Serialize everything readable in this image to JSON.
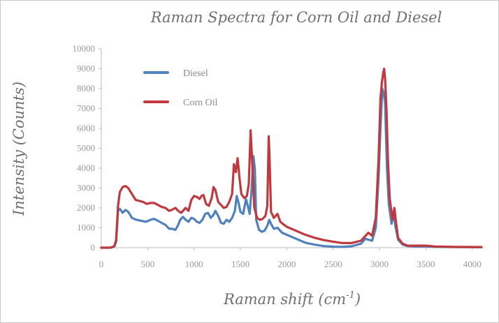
{
  "chart_data": {
    "type": "line",
    "title": "Raman Spectra for Corn Oil and Diesel",
    "xlabel": "Raman shift (cm",
    "xlabel_sup": "-1",
    "xlabel_close": ")",
    "ylabel": "Intensity (Counts)",
    "xlim": [
      0,
      4100
    ],
    "ylim": [
      0,
      10000
    ],
    "x_ticks": [
      "0",
      "500",
      "1000",
      "1500",
      "2000",
      "2500",
      "3000",
      "3500",
      "4000"
    ],
    "y_ticks": [
      "0",
      "1000",
      "2000",
      "3000",
      "4000",
      "5000",
      "6000",
      "7000",
      "8000",
      "9000",
      "10000"
    ],
    "grid": false,
    "legend_position": "top-left",
    "series": [
      {
        "name": "Diesel",
        "color": "#4f81bd",
        "points": [
          [
            0,
            0
          ],
          [
            100,
            0
          ],
          [
            140,
            50
          ],
          [
            160,
            300
          ],
          [
            180,
            1850
          ],
          [
            200,
            1950
          ],
          [
            230,
            1750
          ],
          [
            260,
            1900
          ],
          [
            290,
            1800
          ],
          [
            330,
            1500
          ],
          [
            380,
            1400
          ],
          [
            430,
            1350
          ],
          [
            480,
            1300
          ],
          [
            530,
            1400
          ],
          [
            570,
            1450
          ],
          [
            610,
            1350
          ],
          [
            650,
            1250
          ],
          [
            690,
            1150
          ],
          [
            730,
            950
          ],
          [
            760,
            950
          ],
          [
            800,
            900
          ],
          [
            830,
            1150
          ],
          [
            850,
            1400
          ],
          [
            880,
            1550
          ],
          [
            910,
            1400
          ],
          [
            940,
            1300
          ],
          [
            970,
            1500
          ],
          [
            1000,
            1450
          ],
          [
            1030,
            1300
          ],
          [
            1060,
            1250
          ],
          [
            1090,
            1400
          ],
          [
            1120,
            1700
          ],
          [
            1150,
            1750
          ],
          [
            1180,
            1500
          ],
          [
            1210,
            1650
          ],
          [
            1230,
            1850
          ],
          [
            1260,
            1600
          ],
          [
            1290,
            1250
          ],
          [
            1320,
            1200
          ],
          [
            1350,
            1400
          ],
          [
            1380,
            1300
          ],
          [
            1410,
            1500
          ],
          [
            1440,
            1850
          ],
          [
            1460,
            2600
          ],
          [
            1480,
            2250
          ],
          [
            1500,
            1800
          ],
          [
            1530,
            1700
          ],
          [
            1560,
            2450
          ],
          [
            1580,
            2100
          ],
          [
            1600,
            1700
          ],
          [
            1620,
            2900
          ],
          [
            1640,
            4600
          ],
          [
            1655,
            4000
          ],
          [
            1670,
            1400
          ],
          [
            1700,
            900
          ],
          [
            1730,
            800
          ],
          [
            1760,
            850
          ],
          [
            1790,
            1100
          ],
          [
            1810,
            1400
          ],
          [
            1830,
            1200
          ],
          [
            1860,
            950
          ],
          [
            1900,
            1000
          ],
          [
            1950,
            750
          ],
          [
            2000,
            650
          ],
          [
            2100,
            450
          ],
          [
            2200,
            250
          ],
          [
            2300,
            150
          ],
          [
            2400,
            80
          ],
          [
            2500,
            50
          ],
          [
            2600,
            40
          ],
          [
            2700,
            70
          ],
          [
            2800,
            200
          ],
          [
            2850,
            450
          ],
          [
            2880,
            400
          ],
          [
            2920,
            350
          ],
          [
            2960,
            1000
          ],
          [
            2990,
            3500
          ],
          [
            3010,
            6000
          ],
          [
            3030,
            8000
          ],
          [
            3045,
            7800
          ],
          [
            3060,
            7300
          ],
          [
            3080,
            4000
          ],
          [
            3100,
            2200
          ],
          [
            3130,
            1200
          ],
          [
            3150,
            1800
          ],
          [
            3170,
            1100
          ],
          [
            3200,
            400
          ],
          [
            3250,
            150
          ],
          [
            3300,
            80
          ],
          [
            3400,
            60
          ],
          [
            3500,
            60
          ],
          [
            3600,
            40
          ],
          [
            3800,
            30
          ],
          [
            4100,
            20
          ]
        ]
      },
      {
        "name": "Corn Oil",
        "color": "#c0393f",
        "points": [
          [
            0,
            0
          ],
          [
            100,
            0
          ],
          [
            140,
            80
          ],
          [
            160,
            400
          ],
          [
            180,
            2100
          ],
          [
            200,
            2800
          ],
          [
            230,
            3050
          ],
          [
            260,
            3100
          ],
          [
            290,
            3000
          ],
          [
            330,
            2700
          ],
          [
            370,
            2400
          ],
          [
            410,
            2350
          ],
          [
            450,
            2300
          ],
          [
            490,
            2200
          ],
          [
            530,
            2250
          ],
          [
            570,
            2250
          ],
          [
            610,
            2150
          ],
          [
            650,
            2050
          ],
          [
            690,
            2000
          ],
          [
            730,
            1850
          ],
          [
            760,
            1900
          ],
          [
            800,
            2000
          ],
          [
            830,
            1850
          ],
          [
            860,
            1750
          ],
          [
            890,
            1900
          ],
          [
            910,
            2000
          ],
          [
            940,
            1850
          ],
          [
            970,
            2400
          ],
          [
            1000,
            2600
          ],
          [
            1030,
            2550
          ],
          [
            1060,
            2450
          ],
          [
            1080,
            2600
          ],
          [
            1100,
            2650
          ],
          [
            1130,
            2200
          ],
          [
            1160,
            2100
          ],
          [
            1190,
            2500
          ],
          [
            1210,
            3050
          ],
          [
            1230,
            2900
          ],
          [
            1260,
            2300
          ],
          [
            1290,
            2150
          ],
          [
            1320,
            2000
          ],
          [
            1350,
            2050
          ],
          [
            1380,
            2300
          ],
          [
            1410,
            2700
          ],
          [
            1430,
            4200
          ],
          [
            1450,
            3800
          ],
          [
            1470,
            4500
          ],
          [
            1490,
            3500
          ],
          [
            1510,
            2700
          ],
          [
            1540,
            2500
          ],
          [
            1570,
            2600
          ],
          [
            1590,
            3200
          ],
          [
            1610,
            5900
          ],
          [
            1625,
            4500
          ],
          [
            1650,
            2000
          ],
          [
            1680,
            1500
          ],
          [
            1710,
            1400
          ],
          [
            1740,
            1450
          ],
          [
            1770,
            1600
          ],
          [
            1790,
            2100
          ],
          [
            1805,
            5600
          ],
          [
            1815,
            4400
          ],
          [
            1830,
            1800
          ],
          [
            1860,
            1500
          ],
          [
            1880,
            1600
          ],
          [
            1900,
            1700
          ],
          [
            1930,
            1300
          ],
          [
            1970,
            1150
          ],
          [
            2000,
            1050
          ],
          [
            2100,
            850
          ],
          [
            2200,
            650
          ],
          [
            2300,
            500
          ],
          [
            2400,
            380
          ],
          [
            2500,
            300
          ],
          [
            2600,
            230
          ],
          [
            2700,
            230
          ],
          [
            2800,
            350
          ],
          [
            2850,
            600
          ],
          [
            2880,
            750
          ],
          [
            2920,
            600
          ],
          [
            2960,
            1500
          ],
          [
            2990,
            4500
          ],
          [
            3010,
            7500
          ],
          [
            3025,
            8300
          ],
          [
            3040,
            8800
          ],
          [
            3050,
            9000
          ],
          [
            3060,
            8500
          ],
          [
            3075,
            7000
          ],
          [
            3090,
            4500
          ],
          [
            3110,
            2500
          ],
          [
            3140,
            1400
          ],
          [
            3160,
            2000
          ],
          [
            3180,
            1200
          ],
          [
            3200,
            500
          ],
          [
            3250,
            200
          ],
          [
            3300,
            100
          ],
          [
            3400,
            100
          ],
          [
            3500,
            100
          ],
          [
            3600,
            60
          ],
          [
            3800,
            40
          ],
          [
            4100,
            30
          ]
        ]
      }
    ]
  }
}
